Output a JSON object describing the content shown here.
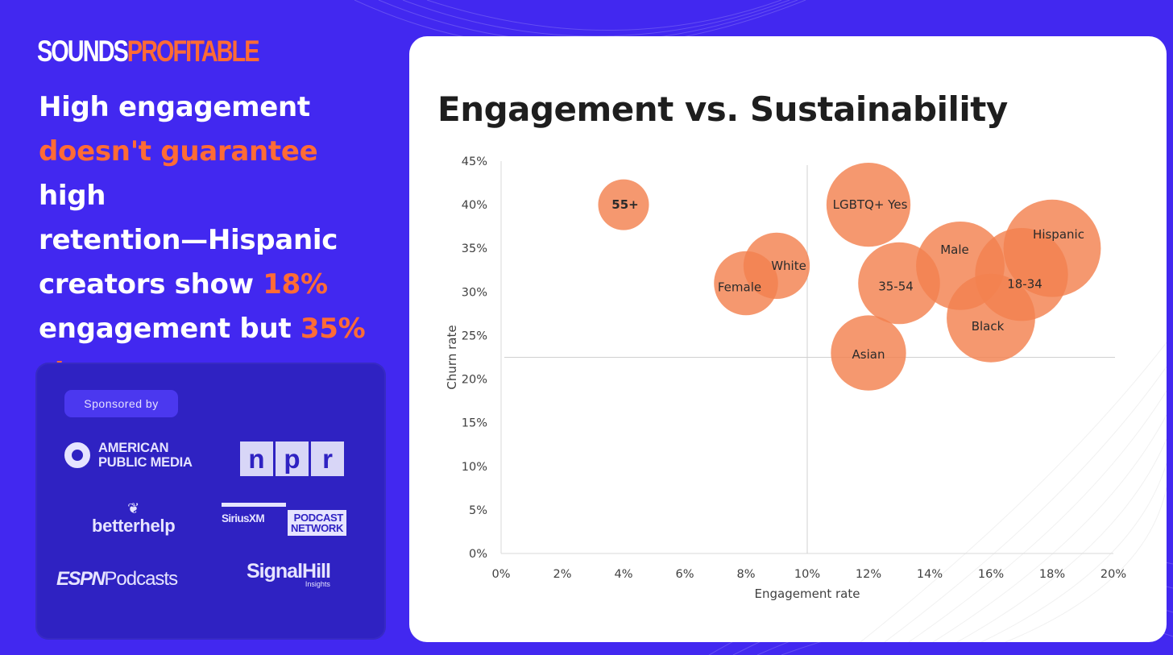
{
  "logo": {
    "part1": "SOUNDS",
    "part2": "PROFITABLE"
  },
  "headline": {
    "line1": "High engagement",
    "line2_hl": "doesn't guarantee",
    "line2_rest": " high",
    "line3": "retention—Hispanic",
    "line4_pre": "creators show ",
    "line4_hl": "18%",
    "line5_pre": "engagement but ",
    "line5_hl": "35%",
    "line6_hl": "churn"
  },
  "sponsors": {
    "label": "Sponsored by",
    "apm_line1": "AMERICAN",
    "apm_line2": "PUBLIC MEDIA",
    "npr": [
      "n",
      "p",
      "r"
    ],
    "betterhelp": "betterhelp",
    "sirius_left": "SiriusXM",
    "sirius_right1": "PODCAST",
    "sirius_right2": "NETWORK",
    "espn": "ESPN",
    "espn_podcasts": "Podcasts",
    "signalhill": "SignalHill",
    "signalhill_sub": "Insights"
  },
  "colors": {
    "background": "#4228f0",
    "accent": "#ff6b35",
    "bubble": "#f3814f"
  },
  "chart_data": {
    "type": "bubble",
    "title": "Engagement vs. Sustainability",
    "xlabel": "Engagement rate",
    "ylabel": "Churn rate",
    "xlim": [
      0,
      20
    ],
    "ylim": [
      0,
      45
    ],
    "x_ticks": [
      "0%",
      "2%",
      "4%",
      "6%",
      "8%",
      "10%",
      "12%",
      "14%",
      "16%",
      "18%",
      "20%"
    ],
    "y_ticks": [
      "0%",
      "5%",
      "10%",
      "15%",
      "20%",
      "25%",
      "30%",
      "35%",
      "40%",
      "45%"
    ],
    "x_reference": 10,
    "y_reference": 22.5,
    "points": [
      {
        "label": "55+",
        "x": 4,
        "y": 40,
        "size": 1.0,
        "bold": true
      },
      {
        "label": "White",
        "x": 9,
        "y": 33,
        "size": 1.35
      },
      {
        "label": "Female",
        "x": 8,
        "y": 31,
        "size": 1.3
      },
      {
        "label": "LGBTQ+ Yes",
        "x": 12,
        "y": 40,
        "size": 1.75
      },
      {
        "label": "35-54",
        "x": 13,
        "y": 31,
        "size": 1.7
      },
      {
        "label": "Asian",
        "x": 12,
        "y": 23,
        "size": 1.55
      },
      {
        "label": "Male",
        "x": 15,
        "y": 33,
        "size": 1.85
      },
      {
        "label": "Hispanic",
        "x": 18,
        "y": 35,
        "size": 2.05
      },
      {
        "label": "18-34",
        "x": 17,
        "y": 32,
        "size": 1.95
      },
      {
        "label": "Black",
        "x": 16,
        "y": 27,
        "size": 1.85
      }
    ]
  }
}
